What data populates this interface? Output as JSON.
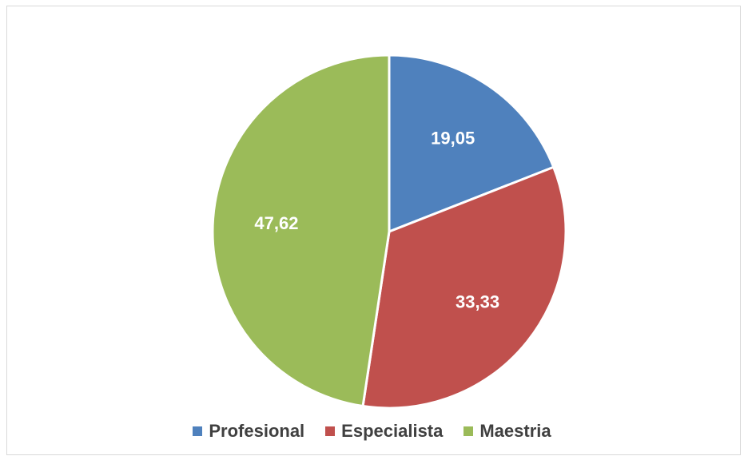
{
  "chart_data": {
    "type": "pie",
    "categories": [
      "Profesional",
      "Especialista",
      "Maestria"
    ],
    "values": [
      19.05,
      33.33,
      47.62
    ],
    "data_labels": [
      "19,05",
      "33,33",
      "47,62"
    ],
    "colors": [
      "#4f81bd",
      "#c0504d",
      "#9bbb59"
    ],
    "start_angle_deg": 0,
    "direction": "clockwise",
    "legend_position": "bottom",
    "title": ""
  }
}
